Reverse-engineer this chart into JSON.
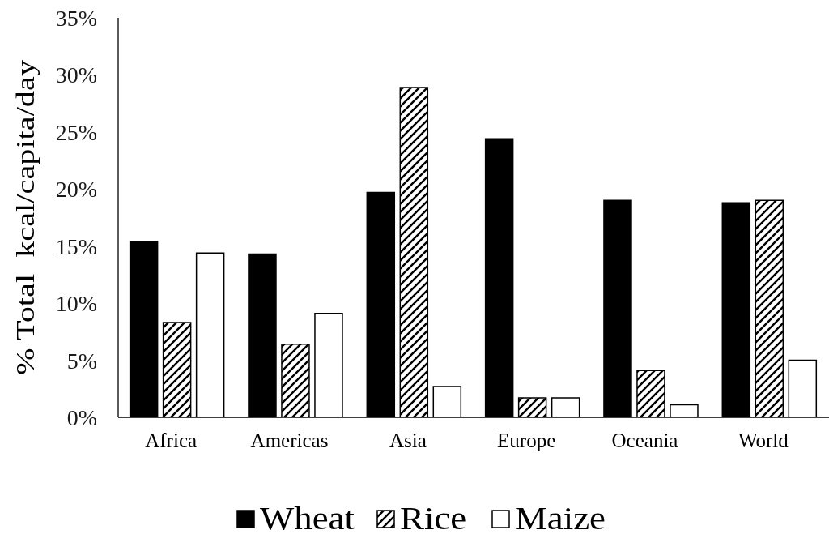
{
  "chart_data": {
    "type": "bar",
    "categories": [
      "Africa",
      "Americas",
      "Asia",
      "Europe",
      "Oceania",
      "World"
    ],
    "series": [
      {
        "name": "Wheat",
        "color": "#000000",
        "values": [
          15.4,
          14.3,
          19.7,
          24.4,
          19.0,
          18.8
        ]
      },
      {
        "name": "Rice",
        "color": "#000000",
        "values": [
          8.3,
          6.4,
          28.9,
          1.7,
          4.1,
          19.0
        ]
      },
      {
        "name": "Maize",
        "color": "#ffffff",
        "values": [
          14.4,
          9.1,
          2.7,
          1.7,
          1.1,
          5.0
        ]
      }
    ],
    "ylabel": "% Total  kcal/capita/day",
    "ylim": [
      0,
      35
    ],
    "yticks": [
      {
        "value": 0,
        "label": "0%"
      },
      {
        "value": 5,
        "label": "5%"
      },
      {
        "value": 10,
        "label": "10%"
      },
      {
        "value": 15,
        "label": "15%"
      },
      {
        "value": 20,
        "label": "20%"
      },
      {
        "value": 25,
        "label": "25%"
      },
      {
        "value": 30,
        "label": "30%"
      },
      {
        "value": 35,
        "label": "35%"
      }
    ],
    "legend": "bottom"
  }
}
